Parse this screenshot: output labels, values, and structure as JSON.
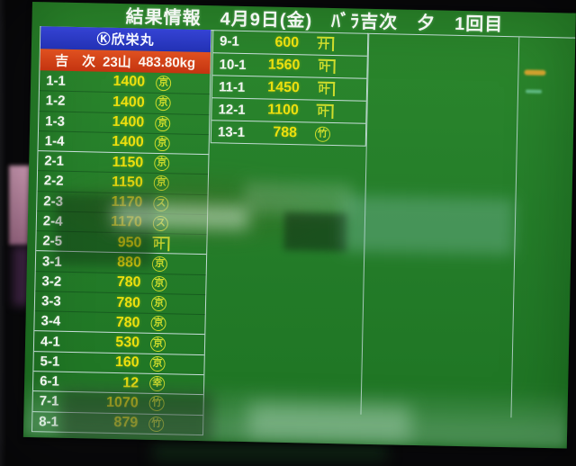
{
  "display": {
    "title": "結果情報　4月9日(金)　ﾊﾞﾗ吉次　夕　1回目"
  },
  "colors": {
    "screen_green": "#267c26",
    "grid_line": "#d7e6ec",
    "header_blue": "#2a38c4",
    "summary_red": "#d2411a",
    "price_yellow": "#ecdf0e",
    "mark_yellow_green": "#cfdd2c",
    "label_white": "#f3f6f2"
  },
  "left_panel": {
    "vessel_label": "Ⓚ欣栄丸",
    "catch_summary": {
      "species": "吉　次",
      "lot_count": "23山",
      "total_weight": "483.80kg"
    },
    "rows": [
      {
        "label": "1-1",
        "value": "1400",
        "mark": "京",
        "mark_style": "circle"
      },
      {
        "label": "1-2",
        "value": "1400",
        "mark": "京",
        "mark_style": "circle"
      },
      {
        "label": "1-3",
        "value": "1400",
        "mark": "京",
        "mark_style": "circle"
      },
      {
        "label": "1-4",
        "value": "1400",
        "mark": "京",
        "mark_style": "circle"
      },
      {
        "label": "2-1",
        "value": "1150",
        "mark": "京",
        "mark_style": "circle"
      },
      {
        "label": "2-2",
        "value": "1150",
        "mark": "京",
        "mark_style": "circle"
      },
      {
        "label": "2-3",
        "value": "1170",
        "mark": "ス",
        "mark_style": "circle"
      },
      {
        "label": "2-4",
        "value": "1170",
        "mark": "ス",
        "mark_style": "circle"
      },
      {
        "label": "2-5",
        "value": "950",
        "mark": "叶",
        "mark_style": "kane"
      },
      {
        "label": "3-1",
        "value": "880",
        "mark": "京",
        "mark_style": "circle"
      },
      {
        "label": "3-2",
        "value": "780",
        "mark": "京",
        "mark_style": "circle"
      },
      {
        "label": "3-3",
        "value": "780",
        "mark": "京",
        "mark_style": "circle"
      },
      {
        "label": "3-4",
        "value": "780",
        "mark": "京",
        "mark_style": "circle"
      },
      {
        "label": "4-1",
        "value": "530",
        "mark": "京",
        "mark_style": "circle"
      },
      {
        "label": "5-1",
        "value": "160",
        "mark": "京",
        "mark_style": "circle"
      },
      {
        "label": "6-1",
        "value": "12",
        "mark": "幸",
        "mark_style": "circle"
      },
      {
        "label": "7-1",
        "value": "1070",
        "mark": "竹",
        "mark_style": "circle"
      },
      {
        "label": "8-1",
        "value": "879",
        "mark": "竹",
        "mark_style": "circle"
      }
    ]
  },
  "right_panel": {
    "rows": [
      {
        "label": "9-1",
        "value": "600",
        "mark": "廾",
        "mark_style": "kane"
      },
      {
        "label": "10-1",
        "value": "1560",
        "mark": "叶",
        "mark_style": "kane"
      },
      {
        "label": "11-1",
        "value": "1450",
        "mark": "叶",
        "mark_style": "kane"
      },
      {
        "label": "12-1",
        "value": "1100",
        "mark": "叶",
        "mark_style": "kane"
      },
      {
        "label": "13-1",
        "value": "788",
        "mark": "竹",
        "mark_style": "circle"
      }
    ]
  }
}
